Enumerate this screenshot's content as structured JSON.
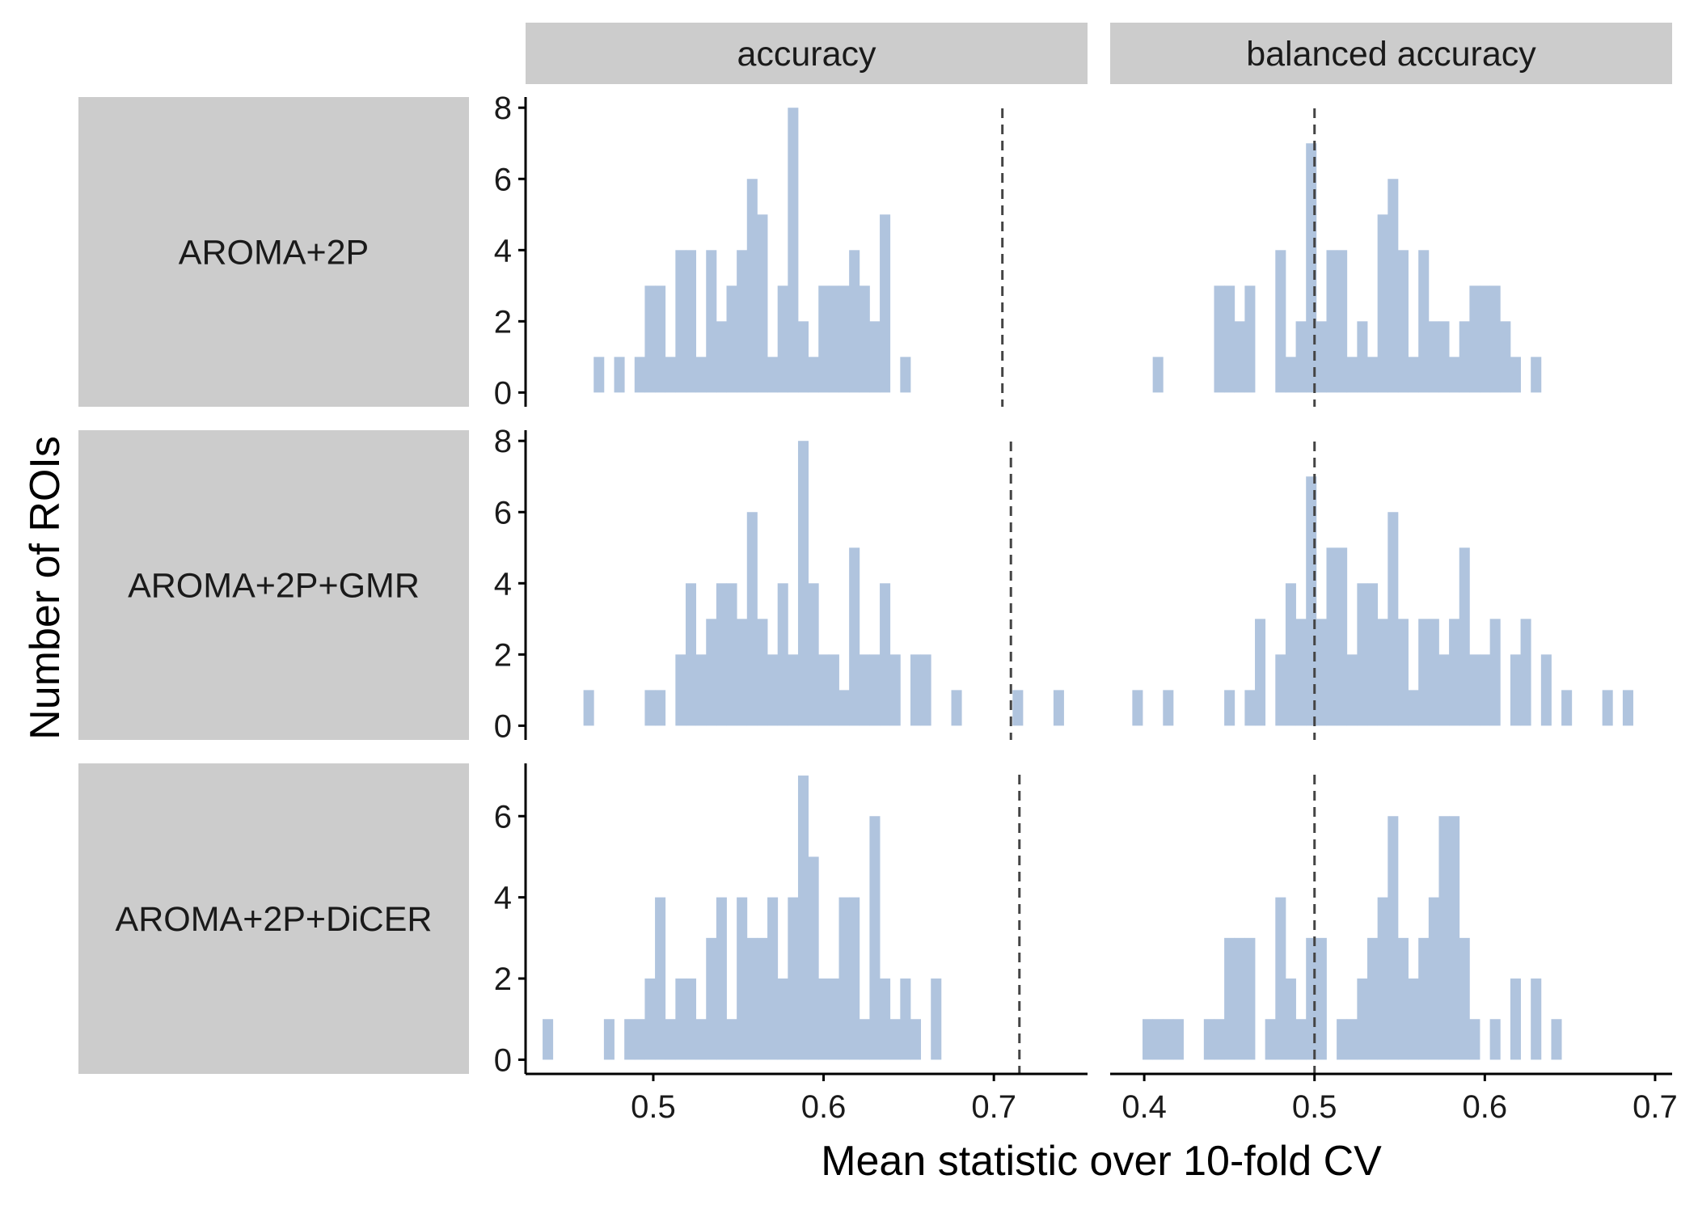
{
  "chart_data": {
    "type": "bar",
    "subtype": "faceted-histogram",
    "xlabel": "Mean statistic over 10-fold CV",
    "ylabel": "Number of ROIs",
    "column_facets": [
      "accuracy",
      "balanced accuracy"
    ],
    "row_facets": [
      "AROMA+2P",
      "AROMA+2P+GMR",
      "AROMA+2P+DiCER"
    ],
    "bar_color": "#b0c4de",
    "reference_line_color": "#444444",
    "grid": false,
    "legend": "none",
    "columns": [
      {
        "name": "accuracy",
        "xlim": [
          0.425,
          0.755
        ],
        "xticks": [
          {
            "v": 0.5,
            "label": "0.5"
          },
          {
            "v": 0.6,
            "label": "0.6"
          },
          {
            "v": 0.7,
            "label": "0.7"
          }
        ],
        "bin_width": 0.006
      },
      {
        "name": "balanced accuracy",
        "xlim": [
          0.38,
          0.71
        ],
        "xticks": [
          {
            "v": 0.4,
            "label": "0.4"
          },
          {
            "v": 0.5,
            "label": "0.5"
          },
          {
            "v": 0.6,
            "label": "0.6"
          },
          {
            "v": 0.7,
            "label": "0.7"
          }
        ],
        "bin_width": 0.006
      }
    ],
    "rows": [
      {
        "name": "AROMA+2P",
        "ylim": [
          -0.4,
          8.3
        ],
        "yticks": [
          {
            "v": 0,
            "label": "0"
          },
          {
            "v": 2,
            "label": "2"
          },
          {
            "v": 4,
            "label": "4"
          },
          {
            "v": 6,
            "label": "6"
          },
          {
            "v": 8,
            "label": "8"
          }
        ]
      },
      {
        "name": "AROMA+2P+GMR",
        "ylim": [
          -0.4,
          8.3
        ],
        "yticks": [
          {
            "v": 0,
            "label": "0"
          },
          {
            "v": 2,
            "label": "2"
          },
          {
            "v": 4,
            "label": "4"
          },
          {
            "v": 6,
            "label": "6"
          },
          {
            "v": 8,
            "label": "8"
          }
        ]
      },
      {
        "name": "AROMA+2P+DiCER",
        "ylim": [
          -0.35,
          7.3
        ],
        "yticks": [
          {
            "v": 0,
            "label": "0"
          },
          {
            "v": 2,
            "label": "2"
          },
          {
            "v": 4,
            "label": "4"
          },
          {
            "v": 6,
            "label": "6"
          }
        ]
      }
    ],
    "panels": [
      {
        "row": "AROMA+2P",
        "column": "accuracy",
        "reference_line": 0.705,
        "bins": [
          [
            0.468,
            1
          ],
          [
            0.48,
            1
          ],
          [
            0.492,
            1
          ],
          [
            0.498,
            3
          ],
          [
            0.504,
            3
          ],
          [
            0.51,
            1
          ],
          [
            0.516,
            4
          ],
          [
            0.522,
            4
          ],
          [
            0.528,
            1
          ],
          [
            0.534,
            4
          ],
          [
            0.54,
            2
          ],
          [
            0.546,
            3
          ],
          [
            0.552,
            4
          ],
          [
            0.558,
            6
          ],
          [
            0.564,
            5
          ],
          [
            0.57,
            1
          ],
          [
            0.576,
            3
          ],
          [
            0.582,
            8
          ],
          [
            0.588,
            2
          ],
          [
            0.594,
            1
          ],
          [
            0.6,
            3
          ],
          [
            0.606,
            3
          ],
          [
            0.612,
            3
          ],
          [
            0.618,
            4
          ],
          [
            0.624,
            3
          ],
          [
            0.63,
            2
          ],
          [
            0.636,
            5
          ],
          [
            0.648,
            1
          ]
        ]
      },
      {
        "row": "AROMA+2P",
        "column": "balanced accuracy",
        "reference_line": 0.5,
        "bins": [
          [
            0.408,
            1
          ],
          [
            0.444,
            3
          ],
          [
            0.45,
            3
          ],
          [
            0.456,
            2
          ],
          [
            0.462,
            3
          ],
          [
            0.48,
            4
          ],
          [
            0.486,
            1
          ],
          [
            0.492,
            2
          ],
          [
            0.498,
            7
          ],
          [
            0.504,
            2
          ],
          [
            0.51,
            4
          ],
          [
            0.516,
            4
          ],
          [
            0.522,
            1
          ],
          [
            0.528,
            2
          ],
          [
            0.534,
            1
          ],
          [
            0.54,
            5
          ],
          [
            0.546,
            6
          ],
          [
            0.552,
            4
          ],
          [
            0.558,
            1
          ],
          [
            0.564,
            4
          ],
          [
            0.57,
            2
          ],
          [
            0.576,
            2
          ],
          [
            0.582,
            1
          ],
          [
            0.588,
            2
          ],
          [
            0.594,
            3
          ],
          [
            0.6,
            3
          ],
          [
            0.606,
            3
          ],
          [
            0.612,
            2
          ],
          [
            0.618,
            1
          ],
          [
            0.63,
            1
          ]
        ]
      },
      {
        "row": "AROMA+2P+GMR",
        "column": "accuracy",
        "reference_line": 0.71,
        "bins": [
          [
            0.462,
            1
          ],
          [
            0.498,
            1
          ],
          [
            0.504,
            1
          ],
          [
            0.516,
            2
          ],
          [
            0.522,
            4
          ],
          [
            0.528,
            2
          ],
          [
            0.534,
            3
          ],
          [
            0.54,
            4
          ],
          [
            0.546,
            4
          ],
          [
            0.552,
            3
          ],
          [
            0.558,
            6
          ],
          [
            0.564,
            3
          ],
          [
            0.57,
            2
          ],
          [
            0.576,
            4
          ],
          [
            0.582,
            2
          ],
          [
            0.588,
            8
          ],
          [
            0.594,
            4
          ],
          [
            0.6,
            2
          ],
          [
            0.606,
            2
          ],
          [
            0.612,
            1
          ],
          [
            0.618,
            5
          ],
          [
            0.624,
            2
          ],
          [
            0.63,
            2
          ],
          [
            0.636,
            4
          ],
          [
            0.642,
            2
          ],
          [
            0.654,
            2
          ],
          [
            0.66,
            2
          ],
          [
            0.678,
            1
          ],
          [
            0.714,
            1
          ],
          [
            0.738,
            1
          ]
        ]
      },
      {
        "row": "AROMA+2P+GMR",
        "column": "balanced accuracy",
        "reference_line": 0.5,
        "bins": [
          [
            0.396,
            1
          ],
          [
            0.414,
            1
          ],
          [
            0.45,
            1
          ],
          [
            0.462,
            1
          ],
          [
            0.468,
            3
          ],
          [
            0.48,
            2
          ],
          [
            0.486,
            4
          ],
          [
            0.492,
            3
          ],
          [
            0.498,
            7
          ],
          [
            0.504,
            3
          ],
          [
            0.51,
            5
          ],
          [
            0.516,
            5
          ],
          [
            0.522,
            2
          ],
          [
            0.528,
            4
          ],
          [
            0.534,
            4
          ],
          [
            0.54,
            3
          ],
          [
            0.546,
            6
          ],
          [
            0.552,
            3
          ],
          [
            0.558,
            1
          ],
          [
            0.564,
            3
          ],
          [
            0.57,
            3
          ],
          [
            0.576,
            2
          ],
          [
            0.582,
            3
          ],
          [
            0.588,
            5
          ],
          [
            0.594,
            2
          ],
          [
            0.6,
            2
          ],
          [
            0.606,
            3
          ],
          [
            0.618,
            2
          ],
          [
            0.624,
            3
          ],
          [
            0.636,
            2
          ],
          [
            0.648,
            1
          ],
          [
            0.672,
            1
          ],
          [
            0.684,
            1
          ]
        ]
      },
      {
        "row": "AROMA+2P+DiCER",
        "column": "accuracy",
        "reference_line": 0.715,
        "bins": [
          [
            0.438,
            1
          ],
          [
            0.474,
            1
          ],
          [
            0.486,
            1
          ],
          [
            0.492,
            1
          ],
          [
            0.498,
            2
          ],
          [
            0.504,
            4
          ],
          [
            0.51,
            1
          ],
          [
            0.516,
            2
          ],
          [
            0.522,
            2
          ],
          [
            0.528,
            1
          ],
          [
            0.534,
            3
          ],
          [
            0.54,
            4
          ],
          [
            0.546,
            1
          ],
          [
            0.552,
            4
          ],
          [
            0.558,
            3
          ],
          [
            0.564,
            3
          ],
          [
            0.57,
            4
          ],
          [
            0.576,
            2
          ],
          [
            0.582,
            4
          ],
          [
            0.588,
            7
          ],
          [
            0.594,
            5
          ],
          [
            0.6,
            2
          ],
          [
            0.606,
            2
          ],
          [
            0.612,
            4
          ],
          [
            0.618,
            4
          ],
          [
            0.624,
            1
          ],
          [
            0.63,
            6
          ],
          [
            0.636,
            2
          ],
          [
            0.642,
            1
          ],
          [
            0.648,
            2
          ],
          [
            0.654,
            1
          ],
          [
            0.666,
            2
          ]
        ]
      },
      {
        "row": "AROMA+2P+DiCER",
        "column": "balanced accuracy",
        "reference_line": 0.5,
        "bins": [
          [
            0.402,
            1
          ],
          [
            0.408,
            1
          ],
          [
            0.414,
            1
          ],
          [
            0.42,
            1
          ],
          [
            0.438,
            1
          ],
          [
            0.444,
            1
          ],
          [
            0.45,
            3
          ],
          [
            0.456,
            3
          ],
          [
            0.462,
            3
          ],
          [
            0.474,
            1
          ],
          [
            0.48,
            4
          ],
          [
            0.486,
            2
          ],
          [
            0.492,
            1
          ],
          [
            0.498,
            3
          ],
          [
            0.504,
            3
          ],
          [
            0.516,
            1
          ],
          [
            0.522,
            1
          ],
          [
            0.528,
            2
          ],
          [
            0.534,
            3
          ],
          [
            0.54,
            4
          ],
          [
            0.546,
            6
          ],
          [
            0.552,
            3
          ],
          [
            0.558,
            2
          ],
          [
            0.564,
            3
          ],
          [
            0.57,
            4
          ],
          [
            0.576,
            6
          ],
          [
            0.582,
            6
          ],
          [
            0.588,
            3
          ],
          [
            0.594,
            1
          ],
          [
            0.606,
            1
          ],
          [
            0.618,
            2
          ],
          [
            0.63,
            2
          ],
          [
            0.642,
            1
          ]
        ]
      }
    ]
  }
}
